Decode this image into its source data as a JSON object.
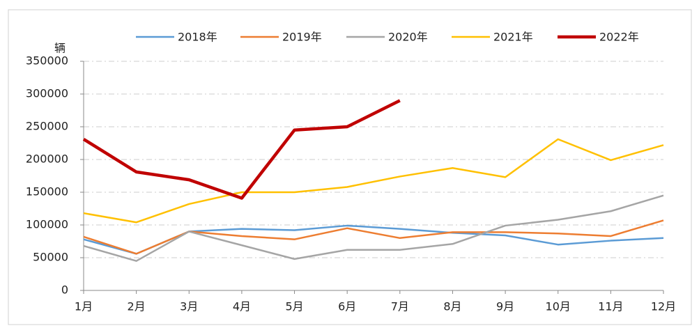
{
  "chart_data": {
    "type": "line",
    "y_unit_label": "辆",
    "categories": [
      "1月",
      "2月",
      "3月",
      "4月",
      "5月",
      "6月",
      "7月",
      "8月",
      "9月",
      "10月",
      "11月",
      "12月"
    ],
    "series": [
      {
        "name": "2018年",
        "color": "#5b9bd5",
        "values": [
          78000,
          56000,
          90000,
          94000,
          92000,
          99000,
          94000,
          88000,
          84000,
          70000,
          76000,
          80000
        ]
      },
      {
        "name": "2019年",
        "color": "#ed7d31",
        "values": [
          82000,
          56000,
          90000,
          83000,
          78000,
          95000,
          80000,
          89000,
          89000,
          87000,
          83000,
          107000
        ]
      },
      {
        "name": "2020年",
        "color": "#a5a5a5",
        "values": [
          68000,
          45000,
          90000,
          69000,
          48000,
          62000,
          62000,
          71000,
          99000,
          108000,
          121000,
          145000
        ]
      },
      {
        "name": "2021年",
        "color": "#ffc000",
        "values": [
          118000,
          104000,
          132000,
          150000,
          150000,
          158000,
          174000,
          187000,
          173000,
          231000,
          199000,
          222000
        ]
      },
      {
        "name": "2022年",
        "color": "#c00000",
        "values": [
          231000,
          181000,
          169000,
          141000,
          245000,
          250000,
          290000,
          null,
          null,
          null,
          null,
          null
        ]
      }
    ],
    "ylim": [
      0,
      350000
    ],
    "yticks": [
      0,
      50000,
      100000,
      150000,
      200000,
      250000,
      300000,
      350000
    ],
    "grid": true
  }
}
